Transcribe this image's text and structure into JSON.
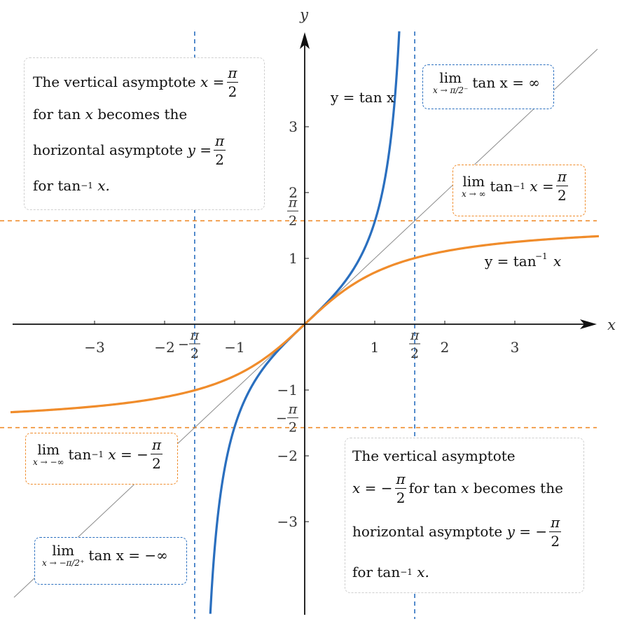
{
  "chart_data": {
    "type": "line",
    "xlim": [
      -4.2,
      4.2
    ],
    "ylim": [
      -4.4,
      4.45
    ],
    "xlabel": "x",
    "ylabel": "y",
    "x_ticks": [
      {
        "value": -3,
        "label": "−3"
      },
      {
        "value": -2,
        "label": "−2"
      },
      {
        "value": -1,
        "label": "−1"
      },
      {
        "value": 1,
        "label": "1"
      },
      {
        "value": 2,
        "label": "2"
      },
      {
        "value": 3,
        "label": "3"
      }
    ],
    "y_ticks": [
      {
        "value": 3,
        "label": "3"
      },
      {
        "value": 2,
        "label": "2"
      },
      {
        "value": 1,
        "label": "1"
      },
      {
        "value": -1,
        "label": "−1"
      },
      {
        "value": -2,
        "label": "−2"
      },
      {
        "value": -3,
        "label": "−3"
      }
    ],
    "pi_half_label": {
      "num": "π",
      "den": "2",
      "neg": "−"
    },
    "series": [
      {
        "name": "y = tan x",
        "function": "tan",
        "domain": [
          -1.5708,
          1.5708
        ],
        "color": "#2a6fbf"
      },
      {
        "name": "y = tan⁻¹ x",
        "function": "arctan",
        "domain": [
          -4.2,
          4.2
        ],
        "color": "#f08c2b"
      },
      {
        "name": "",
        "function": "identity",
        "domain": [
          -4.2,
          4.2
        ],
        "color": "#8a8a8a"
      }
    ],
    "asymptotes": {
      "vertical_x": [
        -1.5708,
        1.5708
      ],
      "horizontal_y": [
        -1.5708,
        1.5708
      ]
    },
    "curve_labels": {
      "tan": "y = tan x",
      "arctan_main": "y = tan",
      "arctan_sup": "−1",
      "arctan_var": "x"
    }
  },
  "annotations": {
    "top_left": {
      "l1": "The vertical asymptote",
      "l1_eq": "x =",
      "l2": "for tan",
      "l2_var": "x",
      "l2_end": "becomes the",
      "l3": "horizontal asymptote",
      "l3_eq": "y =",
      "l4": "for tan",
      "l4_sup": "−1",
      "l4_end": "x."
    },
    "bottom_right": {
      "l1": "The vertical asymptote",
      "l2_eq": "x = −",
      "l2": "for tan",
      "l2_var": "x",
      "l2_end": "becomes the",
      "l3": "horizontal asymptote",
      "l3_eq": "y = −",
      "l4": "for tan",
      "l4_sup": "−1",
      "l4_end": "x."
    },
    "lim_tan_pos": {
      "lim": "lim",
      "sub": "x → π/2⁻",
      "expr": "tan x = ∞"
    },
    "lim_atan_pos": {
      "lim": "lim",
      "sub": "x → ∞",
      "expr": "tan",
      "sup": "−1",
      "expr_end": "x ="
    },
    "lim_atan_neg": {
      "lim": "lim",
      "sub": "x → −∞",
      "expr": "tan",
      "sup": "−1",
      "expr_end": "x = −"
    },
    "lim_tan_neg": {
      "lim": "lim",
      "sub": "x → −π/2⁺",
      "expr": "tan x = −∞"
    },
    "pi": "π",
    "two": "2"
  }
}
